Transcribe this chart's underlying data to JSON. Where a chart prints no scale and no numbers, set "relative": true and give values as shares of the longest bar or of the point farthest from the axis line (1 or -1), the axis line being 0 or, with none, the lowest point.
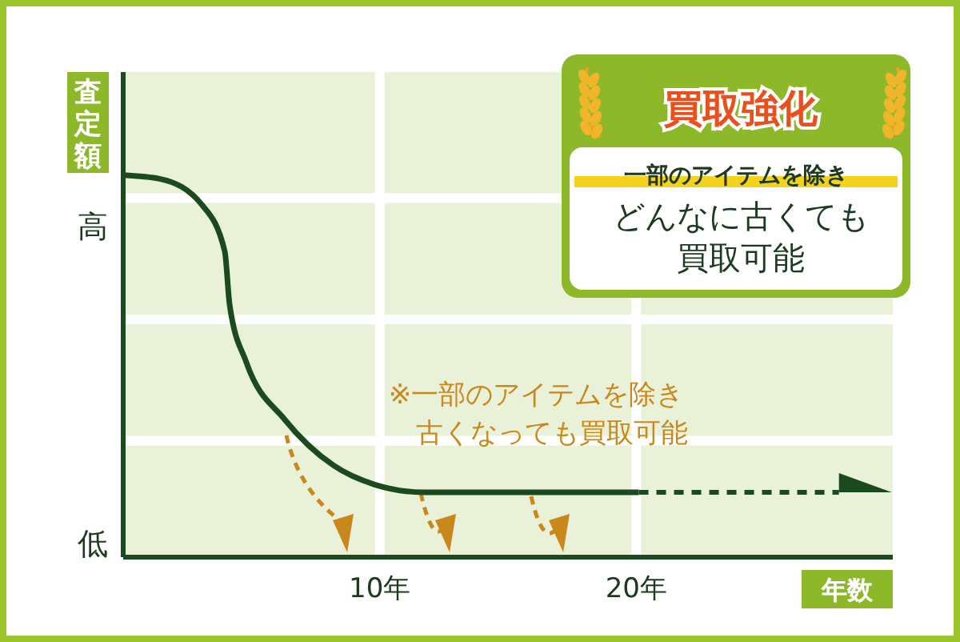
{
  "chart_data": {
    "type": "line",
    "relative": true,
    "ylabel": "査定額",
    "xlabel": "年数",
    "xlim": [
      0,
      30
    ],
    "xticks": [
      {
        "value": 10,
        "label": "10年"
      },
      {
        "value": 20,
        "label": "20年"
      }
    ],
    "grid": true,
    "x": [
      0,
      1.45,
      3.1,
      3.96,
      4.15,
      4.8,
      6.3,
      8.2,
      9.8,
      11.7,
      20.1
    ],
    "series": [
      {
        "color": "#1b4a1f",
        "line_style": "solid",
        "values": [
          1,
          0.99,
          0.92,
          0.8,
          0.66,
          0.51,
          0.36,
          0.24,
          0.19,
          0.17,
          0.17
        ]
      },
      {
        "type": "line",
        "color": "#1b4a1f",
        "line_style": "dashed",
        "x": [
          20.1,
          27.9
        ],
        "values": [
          0.17,
          0.17
        ]
      }
    ],
    "annotations": [
      "高",
      "低",
      "※一部のアイテムを除き",
      "古くなっても買取可能",
      "買取強化",
      "一部のアイテムを除き",
      "どんなに古くても",
      "買取可能"
    ]
  }
}
